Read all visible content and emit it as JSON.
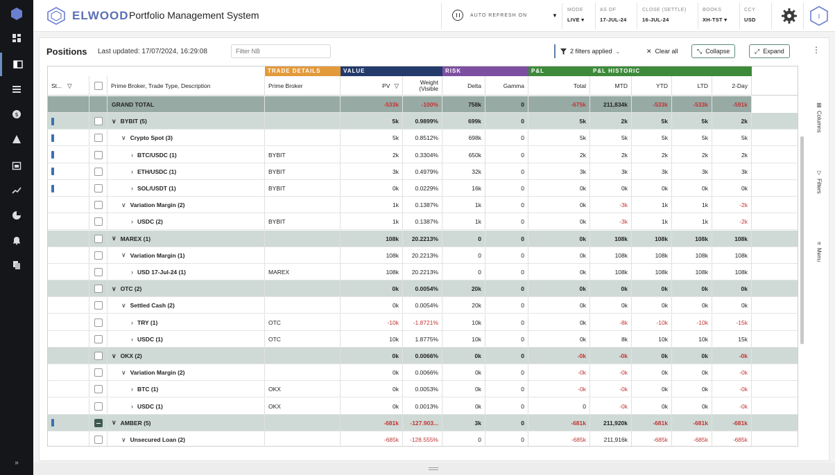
{
  "brand": {
    "name": "ELWOOD",
    "app_title": "Portfolio Management System"
  },
  "header": {
    "refresh_label": "AUTO REFRESH ON",
    "fields": [
      {
        "label": "MODE",
        "value": "LIVE ▾"
      },
      {
        "label": "AS OF",
        "value": "17-JUL-24"
      },
      {
        "label": "CLOSE (SETTLE)",
        "value": "16-JUL-24"
      },
      {
        "label": "BOOKS",
        "value": "XH-TST ▾"
      },
      {
        "label": "CCY",
        "value": "USD"
      }
    ],
    "user_initial": "I"
  },
  "toolbar": {
    "title": "Positions",
    "last_updated": "Last updated: 17/07/2024, 16:29:08",
    "filter_placeholder": "Filter NB",
    "filters_applied": "2 filters applied",
    "clear_all": "Clear all",
    "collapse": "Collapse",
    "expand": "Expand"
  },
  "column_groups": [
    {
      "label": "TRADE DETAILS",
      "color": "#e39a3b"
    },
    {
      "label": "VALUE",
      "color": "#233a6b"
    },
    {
      "label": "RISK",
      "color": "#7d4fa0"
    },
    {
      "label": "P&L",
      "color": "#3d8a3a"
    },
    {
      "label": "P&L HISTORIC",
      "color": "#3d8a3a"
    }
  ],
  "columns": {
    "status": "St...",
    "description": "Prime Broker, Trade Type, Description",
    "prime_broker": "Prime Broker",
    "pv": "PV",
    "weight": "Weight (Visible",
    "delta": "Delta",
    "gamma": "Gamma",
    "total": "Total",
    "mtd": "MTD",
    "ytd": "YTD",
    "ltd": "LTD",
    "twoday": "2-Day"
  },
  "rows": [
    {
      "level": 0,
      "type": "total",
      "desc": "GRAND TOTAL",
      "pb": "",
      "pv": "-533k",
      "weight": "-100%",
      "delta": "758k",
      "gamma": "0",
      "total": "-675k",
      "mtd": "211,834k",
      "ytd": "-533k",
      "ltd": "-533k",
      "twoday": "-591k",
      "status": false,
      "checkbox": false
    },
    {
      "level": 0,
      "type": "group",
      "desc": "BYBIT (5)",
      "pb": "",
      "pv": "5k",
      "weight": "0.9899%",
      "delta": "699k",
      "gamma": "0",
      "total": "5k",
      "mtd": "2k",
      "ytd": "5k",
      "ltd": "5k",
      "twoday": "2k",
      "status": true,
      "checkbox": true,
      "expanded": true
    },
    {
      "level": 1,
      "type": "sub",
      "desc": "Crypto Spot (3)",
      "pb": "",
      "pv": "5k",
      "weight": "0.8512%",
      "delta": "698k",
      "gamma": "0",
      "total": "5k",
      "mtd": "5k",
      "ytd": "5k",
      "ltd": "5k",
      "twoday": "5k",
      "status": true,
      "checkbox": true,
      "expanded": true
    },
    {
      "level": 2,
      "type": "leaf",
      "desc": "BTC/USDC (1)",
      "pb": "BYBIT",
      "pv": "2k",
      "weight": "0.3304%",
      "delta": "650k",
      "gamma": "0",
      "total": "2k",
      "mtd": "2k",
      "ytd": "2k",
      "ltd": "2k",
      "twoday": "2k",
      "status": true,
      "checkbox": true,
      "expanded": false
    },
    {
      "level": 2,
      "type": "leaf",
      "desc": "ETH/USDC (1)",
      "pb": "BYBIT",
      "pv": "3k",
      "weight": "0.4979%",
      "delta": "32k",
      "gamma": "0",
      "total": "3k",
      "mtd": "3k",
      "ytd": "3k",
      "ltd": "3k",
      "twoday": "3k",
      "status": true,
      "checkbox": true,
      "expanded": false
    },
    {
      "level": 2,
      "type": "leaf",
      "desc": "SOL/USDT (1)",
      "pb": "BYBIT",
      "pv": "0k",
      "weight": "0.0229%",
      "delta": "16k",
      "gamma": "0",
      "total": "0k",
      "mtd": "0k",
      "ytd": "0k",
      "ltd": "0k",
      "twoday": "0k",
      "status": true,
      "checkbox": true,
      "expanded": false
    },
    {
      "level": 1,
      "type": "sub",
      "desc": "Variation Margin (2)",
      "pb": "",
      "pv": "1k",
      "weight": "0.1387%",
      "delta": "1k",
      "gamma": "0",
      "total": "0k",
      "mtd": "-3k",
      "ytd": "1k",
      "ltd": "1k",
      "twoday": "-2k",
      "status": false,
      "checkbox": true,
      "expanded": true
    },
    {
      "level": 2,
      "type": "leaf",
      "desc": "USDC (2)",
      "pb": "BYBIT",
      "pv": "1k",
      "weight": "0.1387%",
      "delta": "1k",
      "gamma": "0",
      "total": "0k",
      "mtd": "-3k",
      "ytd": "1k",
      "ltd": "1k",
      "twoday": "-2k",
      "status": false,
      "checkbox": true,
      "expanded": false
    },
    {
      "level": 0,
      "type": "group",
      "desc": "MAREX (1)",
      "pb": "",
      "pv": "108k",
      "weight": "20.2213%",
      "delta": "0",
      "gamma": "0",
      "total": "0k",
      "mtd": "108k",
      "ytd": "108k",
      "ltd": "108k",
      "twoday": "108k",
      "status": false,
      "checkbox": true,
      "expanded": true
    },
    {
      "level": 1,
      "type": "sub",
      "desc": "Variation Margin (1)",
      "pb": "",
      "pv": "108k",
      "weight": "20.2213%",
      "delta": "0",
      "gamma": "0",
      "total": "0k",
      "mtd": "108k",
      "ytd": "108k",
      "ltd": "108k",
      "twoday": "108k",
      "status": false,
      "checkbox": true,
      "expanded": true
    },
    {
      "level": 2,
      "type": "leaf",
      "desc": "USD 17-Jul-24 (1)",
      "pb": "MAREX",
      "pv": "108k",
      "weight": "20.2213%",
      "delta": "0",
      "gamma": "0",
      "total": "0k",
      "mtd": "108k",
      "ytd": "108k",
      "ltd": "108k",
      "twoday": "108k",
      "status": false,
      "checkbox": true,
      "expanded": false
    },
    {
      "level": 0,
      "type": "group",
      "desc": "OTC (2)",
      "pb": "",
      "pv": "0k",
      "weight": "0.0054%",
      "delta": "20k",
      "gamma": "0",
      "total": "0k",
      "mtd": "0k",
      "ytd": "0k",
      "ltd": "0k",
      "twoday": "0k",
      "status": false,
      "checkbox": true,
      "expanded": true
    },
    {
      "level": 1,
      "type": "sub",
      "desc": "Settled Cash (2)",
      "pb": "",
      "pv": "0k",
      "weight": "0.0054%",
      "delta": "20k",
      "gamma": "0",
      "total": "0k",
      "mtd": "0k",
      "ytd": "0k",
      "ltd": "0k",
      "twoday": "0k",
      "status": false,
      "checkbox": true,
      "expanded": true
    },
    {
      "level": 2,
      "type": "leaf",
      "desc": "TRY (1)",
      "pb": "OTC",
      "pv": "-10k",
      "weight": "-1.8721%",
      "delta": "10k",
      "gamma": "0",
      "total": "0k",
      "mtd": "-8k",
      "ytd": "-10k",
      "ltd": "-10k",
      "twoday": "-15k",
      "status": false,
      "checkbox": true,
      "expanded": false
    },
    {
      "level": 2,
      "type": "leaf",
      "desc": "USDC (1)",
      "pb": "OTC",
      "pv": "10k",
      "weight": "1.8775%",
      "delta": "10k",
      "gamma": "0",
      "total": "0k",
      "mtd": "8k",
      "ytd": "10k",
      "ltd": "10k",
      "twoday": "15k",
      "status": false,
      "checkbox": true,
      "expanded": false
    },
    {
      "level": 0,
      "type": "group",
      "desc": "OKX (2)",
      "pb": "",
      "pv": "0k",
      "weight": "0.0066%",
      "delta": "0k",
      "gamma": "0",
      "total": "-0k",
      "mtd": "-0k",
      "ytd": "0k",
      "ltd": "0k",
      "twoday": "-0k",
      "status": false,
      "checkbox": true,
      "expanded": true
    },
    {
      "level": 1,
      "type": "sub",
      "desc": "Variation Margin (2)",
      "pb": "",
      "pv": "0k",
      "weight": "0.0066%",
      "delta": "0k",
      "gamma": "0",
      "total": "-0k",
      "mtd": "-0k",
      "ytd": "0k",
      "ltd": "0k",
      "twoday": "-0k",
      "status": false,
      "checkbox": true,
      "expanded": true
    },
    {
      "level": 2,
      "type": "leaf",
      "desc": "BTC (1)",
      "pb": "OKX",
      "pv": "0k",
      "weight": "0.0053%",
      "delta": "0k",
      "gamma": "0",
      "total": "-0k",
      "mtd": "-0k",
      "ytd": "0k",
      "ltd": "0k",
      "twoday": "-0k",
      "status": false,
      "checkbox": true,
      "expanded": false
    },
    {
      "level": 2,
      "type": "leaf",
      "desc": "USDC (1)",
      "pb": "OKX",
      "pv": "0k",
      "weight": "0.0013%",
      "delta": "0k",
      "gamma": "0",
      "total": "0",
      "mtd": "-0k",
      "ytd": "0k",
      "ltd": "0k",
      "twoday": "-0k",
      "status": false,
      "checkbox": true,
      "expanded": false
    },
    {
      "level": 0,
      "type": "group",
      "desc": "AMBER (5)",
      "pb": "",
      "pv": "-681k",
      "weight": "-127.903...",
      "delta": "3k",
      "gamma": "0",
      "total": "-681k",
      "mtd": "211,920k",
      "ytd": "-681k",
      "ltd": "-681k",
      "twoday": "-681k",
      "status": true,
      "checkbox": true,
      "checked": true,
      "expanded": true
    },
    {
      "level": 1,
      "type": "sub",
      "desc": "Unsecured Loan (2)",
      "pb": "",
      "pv": "-685k",
      "weight": "-128.555%",
      "delta": "0",
      "gamma": "0",
      "total": "-685k",
      "mtd": "211,916k",
      "ytd": "-685k",
      "ltd": "-685k",
      "twoday": "-685k",
      "status": false,
      "checkbox": true,
      "expanded": true
    }
  ],
  "side_tabs": [
    "Columns",
    "Filters",
    "Menu"
  ],
  "colors": {
    "accent": "#5b6fb5",
    "group_row": "#cfdad6",
    "total_row": "#98aaa4",
    "negative": "#c03434"
  }
}
